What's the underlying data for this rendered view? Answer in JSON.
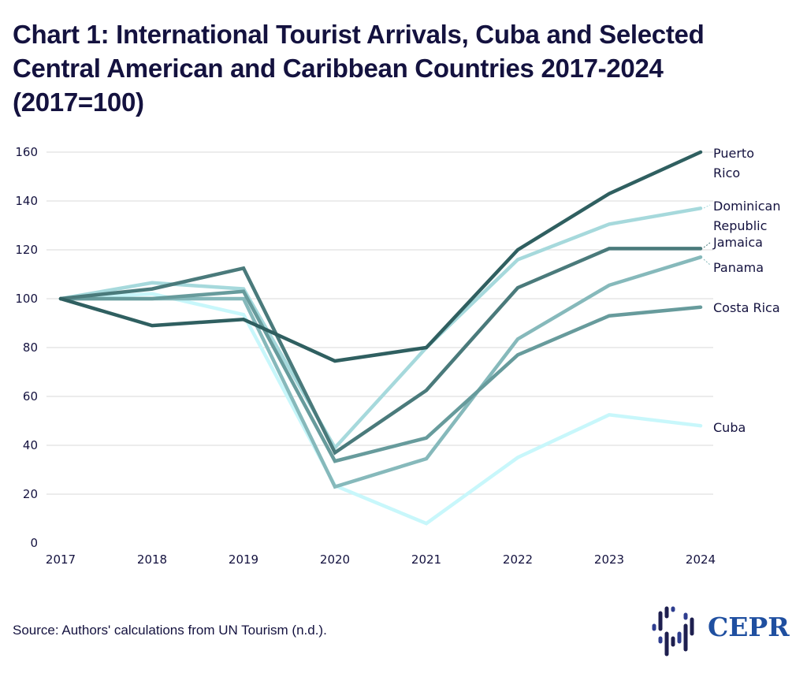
{
  "header": {
    "title": "Chart 1: International Tourist Arrivals, Cuba and Selected Central American and Caribbean Countries 2017-2024 (2017=100)"
  },
  "footer": {
    "source": "Source: Authors' calculations from UN Tourism (n.d.).",
    "logo_text": "CEPR",
    "logo_icon": "cepr-dots-icon"
  },
  "chart_data": {
    "type": "line",
    "title": "Chart 1: International Tourist Arrivals, Cuba and Selected Central American and Caribbean Countries 2017-2024 (2017=100)",
    "xlabel": "",
    "ylabel": "",
    "x": [
      "2017",
      "2018",
      "2019",
      "2020",
      "2021",
      "2022",
      "2023",
      "2024"
    ],
    "ylim": [
      0,
      160
    ],
    "yticks": [
      0,
      20,
      40,
      60,
      80,
      100,
      120,
      140,
      160
    ],
    "grid": true,
    "legend": "direct labels at line ends (right)",
    "series": [
      {
        "name": "Cuba",
        "label_lines": [
          "Cuba"
        ],
        "color": "#c8f7fb",
        "values": [
          100,
          102,
          93.5,
          23.5,
          8,
          35,
          52.5,
          48
        ]
      },
      {
        "name": "Dominican Republic",
        "label_lines": [
          "Dominican",
          "Republic"
        ],
        "color": "#a6d9dc",
        "values": [
          100,
          106.5,
          104,
          39,
          80,
          116,
          130.5,
          137
        ]
      },
      {
        "name": "Panama",
        "label_lines": [
          "Panama"
        ],
        "color": "#86b9bb",
        "values": [
          100,
          100,
          100,
          23,
          34.5,
          83.5,
          105.5,
          117
        ]
      },
      {
        "name": "Costa Rica",
        "label_lines": [
          "Costa Rica"
        ],
        "color": "#679b9c",
        "values": [
          100,
          100,
          103,
          33.5,
          43,
          77,
          93,
          96.5
        ]
      },
      {
        "name": "Jamaica",
        "label_lines": [
          "Jamaica"
        ],
        "color": "#4a7a7b",
        "values": [
          100,
          104,
          112.5,
          37,
          62.5,
          104.5,
          120.5,
          120.5
        ]
      },
      {
        "name": "Puerto Rico",
        "label_lines": [
          "Puerto",
          "Rico"
        ],
        "color": "#2f5f60",
        "values": [
          100,
          89,
          91.5,
          74.5,
          80,
          120,
          143,
          160
        ]
      }
    ]
  }
}
